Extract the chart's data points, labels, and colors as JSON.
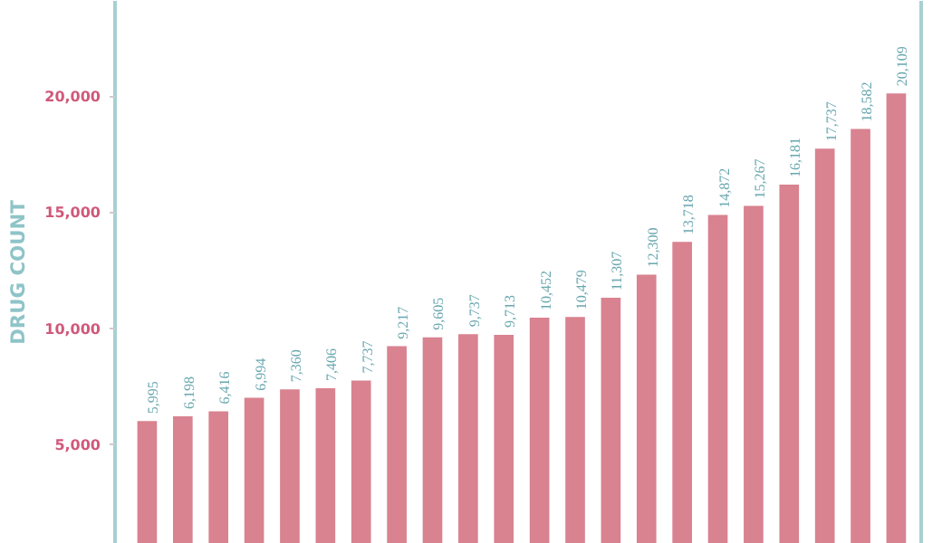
{
  "chart_data": {
    "type": "bar",
    "ylabel": "DRUG COUNT",
    "categories": [
      null,
      null,
      null,
      null,
      null,
      null,
      null,
      null,
      null,
      null,
      null,
      null,
      null,
      null,
      null,
      null,
      null,
      null,
      null,
      null,
      null,
      null
    ],
    "values": [
      5995,
      6198,
      6416,
      6994,
      7360,
      7406,
      7737,
      9217,
      9605,
      9737,
      9713,
      10452,
      10479,
      11307,
      12300,
      13718,
      14872,
      15267,
      16181,
      17737,
      18582,
      20109
    ],
    "value_labels": [
      "5,995",
      "6,198",
      "6,416",
      "6,994",
      "7,360",
      "7,406",
      "7,737",
      "9,217",
      "9,605",
      "9,737",
      "9,713",
      "10,452",
      "10,479",
      "11,307",
      "12,300",
      "13,718",
      "14,872",
      "15,267",
      "16,181",
      "17,737",
      "18,582",
      "20,109"
    ],
    "color": "#d98290",
    "ylim": [
      700,
      24100
    ],
    "yticks": [
      {
        "value": 5000,
        "label": "5,000"
      },
      {
        "value": 10000,
        "label": "10,000"
      },
      {
        "value": 15000,
        "label": "15,000"
      },
      {
        "value": 20000,
        "label": "20,000"
      }
    ],
    "grid": false,
    "tick_labels": "y"
  }
}
